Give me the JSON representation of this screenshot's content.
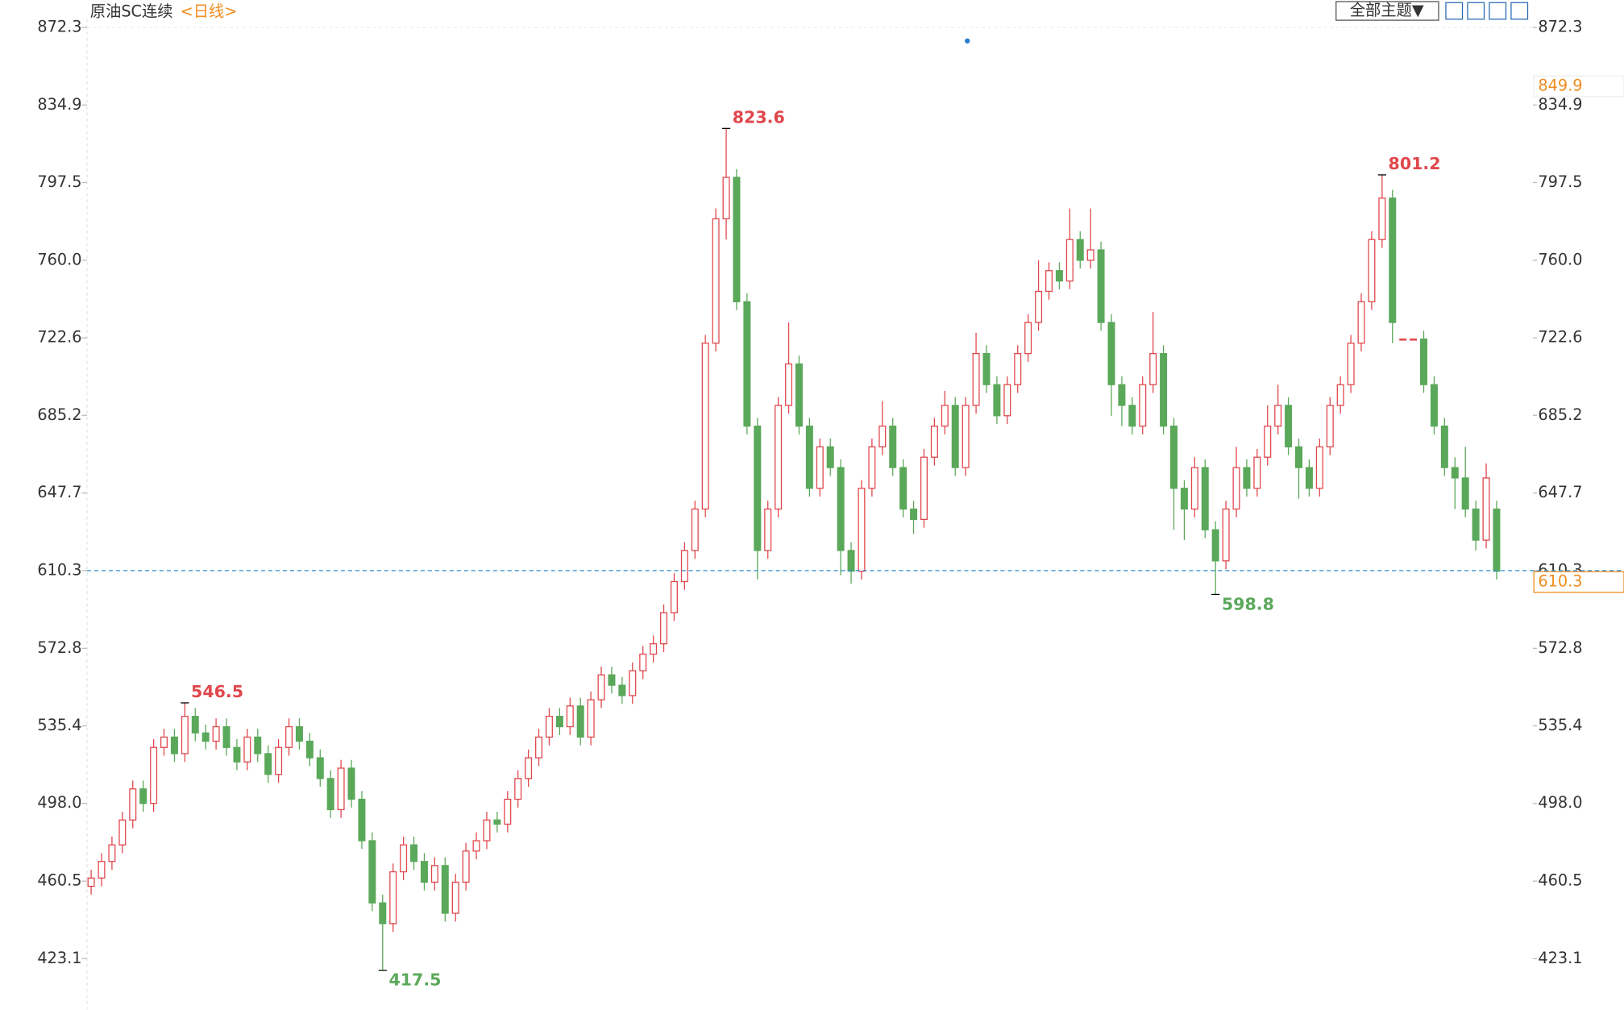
{
  "chart_data": {
    "type": "candlestick",
    "title": "原油SC连续",
    "period": "<日线>",
    "theme_button": "全部主题▼",
    "up_color": "#e0474c",
    "down_color": "#5aa85a",
    "ylim": [
      398.6,
      876.3
    ],
    "yticks": [
      872.3,
      834.9,
      797.5,
      {
        "value": 760.0,
        "label": "760.0"
      },
      722.6,
      685.2,
      647.7,
      610.3,
      572.8,
      535.4,
      {
        "value": 498.0,
        "label": "498.0"
      },
      460.5,
      423.1
    ],
    "open": [
      458,
      462,
      470,
      478,
      490,
      505,
      498,
      525,
      530,
      522,
      540,
      532,
      528,
      535,
      525,
      518,
      530,
      522,
      512,
      525,
      535,
      528,
      520,
      510,
      495,
      515,
      500,
      480,
      450,
      440,
      465,
      478,
      470,
      460,
      468,
      445,
      460,
      475,
      480,
      490,
      488,
      500,
      510,
      520,
      530,
      540,
      535,
      545,
      530,
      548,
      560,
      555,
      550,
      562,
      570,
      575,
      590,
      605,
      620,
      640,
      720,
      780,
      800,
      740,
      680,
      620,
      640,
      690,
      710,
      680,
      650,
      670,
      660,
      620,
      610,
      650,
      670,
      680,
      660,
      640,
      635,
      665,
      680,
      690,
      660,
      690,
      715,
      700,
      685,
      700,
      715,
      730,
      745,
      755,
      750,
      770,
      760,
      765,
      730,
      700,
      690,
      680,
      700,
      715,
      680,
      650,
      640,
      660,
      630,
      615,
      640,
      660,
      650,
      665,
      680,
      690,
      670,
      660,
      650,
      670,
      690,
      700,
      720,
      740,
      770,
      790,
      722,
      722,
      722,
      700,
      680,
      660,
      655,
      640,
      625,
      640
    ],
    "high": [
      466,
      474,
      482,
      494,
      509,
      509,
      529,
      534,
      534,
      546.5,
      544,
      536,
      539,
      539,
      529,
      534,
      534,
      526,
      529,
      539,
      539,
      532,
      524,
      514,
      519,
      519,
      504,
      484,
      454,
      469,
      482,
      482,
      474,
      472,
      472,
      464,
      479,
      484,
      494,
      494,
      504,
      514,
      524,
      534,
      544,
      544,
      549,
      549,
      552,
      564,
      564,
      559,
      566,
      574,
      579,
      594,
      609,
      624,
      644,
      724,
      785,
      823.6,
      804,
      744,
      684,
      644,
      694,
      730,
      714,
      684,
      674,
      674,
      664,
      624,
      654,
      674,
      692,
      684,
      664,
      644,
      669,
      684,
      697,
      694,
      694,
      725,
      719,
      704,
      704,
      719,
      734,
      760,
      759,
      759,
      785,
      774,
      785,
      769,
      734,
      704,
      694,
      704,
      735,
      719,
      684,
      654,
      665,
      664,
      634,
      644,
      670,
      664,
      669,
      690,
      700,
      694,
      674,
      664,
      674,
      694,
      704,
      724,
      744,
      774,
      801.2,
      794,
      722,
      722,
      726,
      704,
      684,
      665,
      670,
      644,
      662,
      644
    ],
    "low": [
      454,
      458,
      466,
      474,
      486,
      494,
      494,
      521,
      518,
      518,
      528,
      524,
      524,
      521,
      514,
      514,
      518,
      508,
      508,
      521,
      524,
      516,
      506,
      491,
      491,
      496,
      476,
      446,
      417.5,
      436,
      461,
      466,
      456,
      456,
      441,
      441,
      456,
      471,
      476,
      484,
      484,
      496,
      506,
      516,
      526,
      531,
      531,
      526,
      526,
      544,
      551,
      546,
      546,
      558,
      566,
      571,
      586,
      601,
      616,
      636,
      716,
      770,
      736,
      676,
      606,
      616,
      636,
      686,
      676,
      646,
      646,
      656,
      608,
      604,
      606,
      646,
      666,
      656,
      636,
      628,
      631,
      661,
      676,
      656,
      656,
      686,
      696,
      681,
      681,
      696,
      711,
      726,
      741,
      746,
      746,
      756,
      756,
      726,
      685,
      680,
      676,
      676,
      696,
      676,
      630,
      625,
      636,
      626,
      598.8,
      611,
      636,
      646,
      646,
      661,
      676,
      666,
      645,
      646,
      646,
      666,
      686,
      696,
      716,
      736,
      766,
      720,
      722,
      722,
      696,
      676,
      656,
      640,
      636,
      620,
      621,
      606
    ],
    "close": [
      462,
      470,
      478,
      490,
      505,
      498,
      525,
      530,
      522,
      540,
      532,
      528,
      535,
      525,
      518,
      530,
      522,
      512,
      525,
      535,
      528,
      520,
      510,
      495,
      515,
      500,
      480,
      450,
      440,
      465,
      478,
      470,
      460,
      468,
      445,
      460,
      475,
      480,
      490,
      488,
      500,
      510,
      520,
      530,
      540,
      535,
      545,
      530,
      548,
      560,
      555,
      550,
      562,
      570,
      575,
      590,
      605,
      620,
      640,
      720,
      780,
      800,
      740,
      680,
      620,
      640,
      690,
      710,
      680,
      650,
      670,
      660,
      620,
      610,
      650,
      670,
      680,
      660,
      640,
      635,
      665,
      680,
      690,
      660,
      690,
      715,
      700,
      685,
      700,
      715,
      730,
      745,
      755,
      750,
      770,
      760,
      765,
      730,
      700,
      690,
      680,
      700,
      715,
      680,
      650,
      640,
      660,
      630,
      615,
      640,
      660,
      650,
      665,
      680,
      690,
      670,
      660,
      650,
      670,
      690,
      700,
      720,
      740,
      770,
      790,
      730,
      722,
      722,
      700,
      680,
      660,
      655,
      640,
      625,
      655,
      610
    ],
    "annotations": [
      546.5,
      417.5,
      823.6,
      598.8,
      801.2
    ],
    "price_tags": [
      849.9,
      610.3
    ]
  }
}
